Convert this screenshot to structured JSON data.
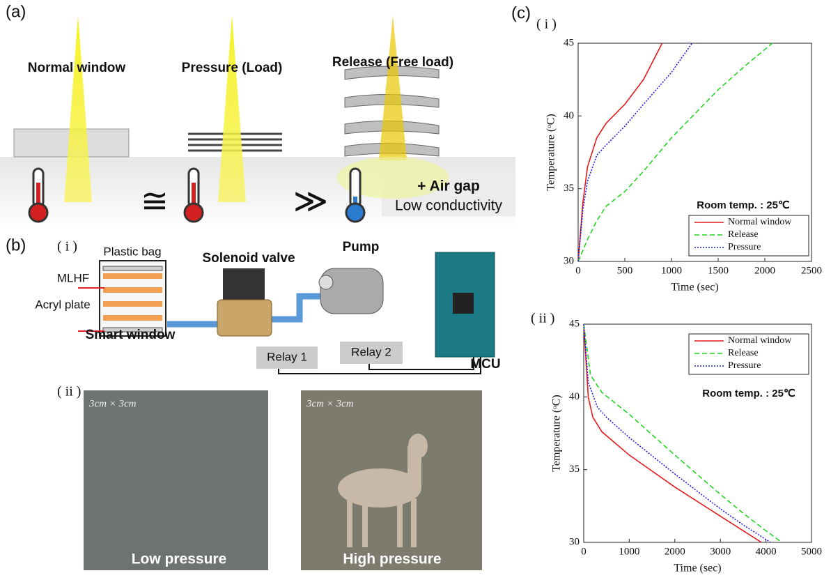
{
  "panel_a": {
    "label": "(a)",
    "windows": [
      "Normal window",
      "Pressure (Load)",
      "Release (Free load)"
    ],
    "relations": [
      "≅",
      "≫"
    ],
    "air_gap": "+ Air gap",
    "air_gap_note": "Low conductivity"
  },
  "panel_b": {
    "label": "(b)",
    "sub_i": "( i )",
    "plastic_bag": "Plastic bag",
    "mlhf": "MLHF",
    "acryl_plate": "Acryl plate",
    "smart_window": "Smart window",
    "solenoid_valve": "Solenoid valve",
    "pump": "Pump",
    "relays": [
      "Relay 1",
      "Relay 2"
    ],
    "mcu": "MCU",
    "sub_ii": "( ii )",
    "photos": [
      {
        "scale": "3cm × 3cm",
        "caption": "Low pressure"
      },
      {
        "scale": "3cm × 3cm",
        "caption": "High pressure"
      }
    ]
  },
  "panel_c": {
    "label": "(c)"
  },
  "chart_data": [
    {
      "type": "line",
      "panel_label": "( i )",
      "xlabel": "Time (sec)",
      "ylabel": "Temperature (ᵒC)",
      "annotation": "Room temp. : 25℃",
      "legend": "lower right",
      "xlim": [
        0,
        2500
      ],
      "xticks": [
        0,
        500,
        1000,
        1500,
        2000,
        2500
      ],
      "ylim": [
        30,
        45
      ],
      "yticks": [
        30,
        35,
        40,
        45
      ],
      "series": [
        {
          "name": "Normal window",
          "color": "#e8191c",
          "dash": "solid",
          "x": [
            0,
            50,
            100,
            200,
            300,
            500,
            700,
            900
          ],
          "values": [
            30,
            34,
            36.5,
            38.5,
            39.5,
            40.8,
            42.5,
            45
          ]
        },
        {
          "name": "Release",
          "color": "#22d622",
          "dash": "dashed",
          "x": [
            0,
            100,
            200,
            300,
            500,
            700,
            1000,
            1500,
            1800,
            2080
          ],
          "values": [
            30,
            31.5,
            32.8,
            33.8,
            34.8,
            36.2,
            38.5,
            41.8,
            43.5,
            45
          ]
        },
        {
          "name": "Pressure",
          "color": "#1c1ce0",
          "dash": "dotted",
          "x": [
            0,
            50,
            100,
            200,
            300,
            500,
            700,
            1000,
            1220
          ],
          "values": [
            30,
            33.5,
            35.5,
            37.3,
            38,
            39.3,
            40.8,
            43,
            45
          ]
        }
      ]
    },
    {
      "type": "line",
      "panel_label": "( ii )",
      "xlabel": "Time (sec)",
      "ylabel": "Temperature (ᵒC)",
      "annotation": "Room temp. : 25℃",
      "legend": "upper right",
      "xlim": [
        0,
        5000
      ],
      "xticks": [
        0,
        1000,
        2000,
        3000,
        4000,
        5000
      ],
      "ylim": [
        30,
        45
      ],
      "yticks": [
        30,
        35,
        40,
        45
      ],
      "series": [
        {
          "name": "Normal window",
          "color": "#e8191c",
          "dash": "solid",
          "x": [
            0,
            100,
            200,
            400,
            1000,
            2000,
            3000,
            3900
          ],
          "values": [
            45,
            40,
            38.6,
            37.6,
            36,
            33.8,
            31.8,
            30
          ]
        },
        {
          "name": "Release",
          "color": "#22d622",
          "dash": "dashed",
          "x": [
            0,
            150,
            400,
            1000,
            2000,
            3000,
            3500,
            4000,
            4350
          ],
          "values": [
            45,
            41.5,
            40.3,
            38.8,
            36,
            33.3,
            32,
            30.8,
            30
          ]
        },
        {
          "name": "Pressure",
          "color": "#1c1ce0",
          "dash": "dotted",
          "x": [
            0,
            100,
            300,
            500,
            1000,
            2000,
            3000,
            3500,
            4100
          ],
          "values": [
            45,
            41,
            39.3,
            38.6,
            37.2,
            34.7,
            32.3,
            31.2,
            30
          ]
        }
      ]
    }
  ]
}
